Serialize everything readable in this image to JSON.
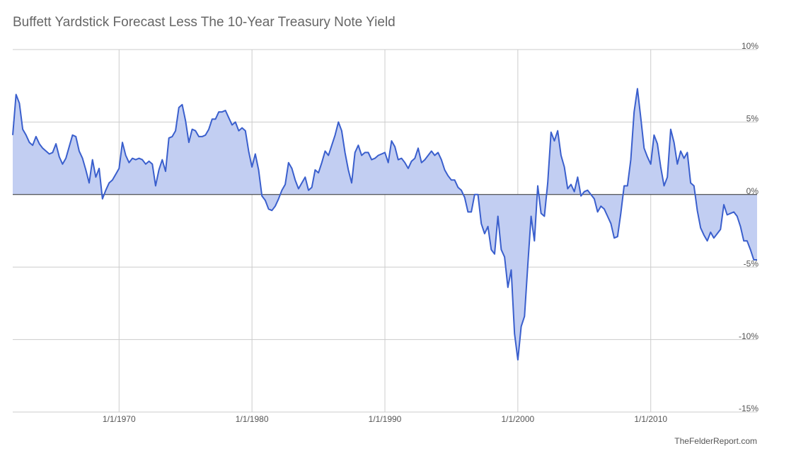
{
  "chart_data": {
    "type": "area",
    "title": "Buffett Yardstick Forecast Less The 10-Year Treasury Note Yield",
    "footnote": "TheFelderReport.com",
    "color": "#3a5fcd",
    "fill": "#c2cef2",
    "grid": true,
    "xlim": [
      1962,
      2018
    ],
    "ylim": [
      -15,
      10
    ],
    "xticks": [
      {
        "value": 1970,
        "label": "1/1/1970"
      },
      {
        "value": 1980,
        "label": "1/1/1980"
      },
      {
        "value": 1990,
        "label": "1/1/1990"
      },
      {
        "value": 2000,
        "label": "1/1/2000"
      },
      {
        "value": 2010,
        "label": "1/1/2010"
      }
    ],
    "yticks": [
      {
        "value": 10,
        "label": "10%"
      },
      {
        "value": 5,
        "label": "5%"
      },
      {
        "value": 0,
        "label": "0%"
      },
      {
        "value": -5,
        "label": "-5%"
      },
      {
        "value": -10,
        "label": "-10%"
      },
      {
        "value": -15,
        "label": "-15%"
      }
    ],
    "x": [
      1962,
      1962.25,
      1962.5,
      1962.75,
      1963,
      1963.25,
      1963.5,
      1963.75,
      1964,
      1964.25,
      1964.5,
      1964.75,
      1965,
      1965.25,
      1965.5,
      1965.75,
      1966,
      1966.25,
      1966.5,
      1966.75,
      1967,
      1967.25,
      1967.5,
      1967.75,
      1968,
      1968.25,
      1968.5,
      1968.75,
      1969,
      1969.25,
      1969.5,
      1969.75,
      1970,
      1970.25,
      1970.5,
      1970.75,
      1971,
      1971.25,
      1971.5,
      1971.75,
      1972,
      1972.25,
      1972.5,
      1972.75,
      1973,
      1973.25,
      1973.5,
      1973.75,
      1974,
      1974.25,
      1974.5,
      1974.75,
      1975,
      1975.25,
      1975.5,
      1975.75,
      1976,
      1976.25,
      1976.5,
      1976.75,
      1977,
      1977.25,
      1977.5,
      1977.75,
      1978,
      1978.25,
      1978.5,
      1978.75,
      1979,
      1979.25,
      1979.5,
      1979.75,
      1980,
      1980.25,
      1980.5,
      1980.75,
      1981,
      1981.25,
      1981.5,
      1981.75,
      1982,
      1982.25,
      1982.5,
      1982.75,
      1983,
      1983.25,
      1983.5,
      1983.75,
      1984,
      1984.25,
      1984.5,
      1984.75,
      1985,
      1985.25,
      1985.5,
      1985.75,
      1986,
      1986.25,
      1986.5,
      1986.75,
      1987,
      1987.25,
      1987.5,
      1987.75,
      1988,
      1988.25,
      1988.5,
      1988.75,
      1989,
      1989.25,
      1989.5,
      1989.75,
      1990,
      1990.25,
      1990.5,
      1990.75,
      1991,
      1991.25,
      1991.5,
      1991.75,
      1992,
      1992.25,
      1992.5,
      1992.75,
      1993,
      1993.25,
      1993.5,
      1993.75,
      1994,
      1994.25,
      1994.5,
      1994.75,
      1995,
      1995.25,
      1995.5,
      1995.75,
      1996,
      1996.25,
      1996.5,
      1996.75,
      1997,
      1997.25,
      1997.5,
      1997.75,
      1998,
      1998.25,
      1998.5,
      1998.75,
      1999,
      1999.25,
      1999.5,
      1999.75,
      2000,
      2000.25,
      2000.5,
      2000.75,
      2001,
      2001.25,
      2001.5,
      2001.75,
      2002,
      2002.25,
      2002.5,
      2002.75,
      2003,
      2003.25,
      2003.5,
      2003.75,
      2004,
      2004.25,
      2004.5,
      2004.75,
      2005,
      2005.25,
      2005.5,
      2005.75,
      2006,
      2006.25,
      2006.5,
      2006.75,
      2007,
      2007.25,
      2007.5,
      2007.75,
      2008,
      2008.25,
      2008.5,
      2008.75,
      2009,
      2009.25,
      2009.5,
      2009.75,
      2010,
      2010.25,
      2010.5,
      2010.75,
      2011,
      2011.25,
      2011.5,
      2011.75,
      2012,
      2012.25,
      2012.5,
      2012.75,
      2013,
      2013.25,
      2013.5,
      2013.75,
      2014,
      2014.25,
      2014.5,
      2014.75,
      2015,
      2015.25,
      2015.5,
      2015.75,
      2016,
      2016.25,
      2016.5,
      2016.75,
      2017,
      2017.25,
      2017.5,
      2017.75,
      2018
    ],
    "values": [
      4.1,
      6.9,
      6.3,
      4.5,
      4.1,
      3.6,
      3.4,
      4.0,
      3.5,
      3.2,
      3.0,
      2.8,
      2.9,
      3.5,
      2.6,
      2.1,
      2.5,
      3.3,
      4.1,
      4.0,
      3.0,
      2.5,
      1.7,
      0.8,
      2.4,
      1.2,
      1.8,
      -0.3,
      0.3,
      0.8,
      1.0,
      1.4,
      1.8,
      3.6,
      2.7,
      2.2,
      2.5,
      2.4,
      2.5,
      2.4,
      2.1,
      2.3,
      2.1,
      0.6,
      1.7,
      2.4,
      1.6,
      3.9,
      4.0,
      4.4,
      6.0,
      6.2,
      5.1,
      3.6,
      4.5,
      4.4,
      4.0,
      4.0,
      4.1,
      4.5,
      5.2,
      5.2,
      5.7,
      5.7,
      5.8,
      5.3,
      4.8,
      5.0,
      4.4,
      4.6,
      4.4,
      3.0,
      1.9,
      2.8,
      1.7,
      -0.1,
      -0.4,
      -1.0,
      -1.1,
      -0.8,
      -0.3,
      0.3,
      0.7,
      2.2,
      1.8,
      1.0,
      0.4,
      0.8,
      1.2,
      0.3,
      0.5,
      1.7,
      1.5,
      2.2,
      3.0,
      2.7,
      3.4,
      4.1,
      5.0,
      4.4,
      2.9,
      1.7,
      0.8,
      2.9,
      3.4,
      2.7,
      2.9,
      2.9,
      2.4,
      2.5,
      2.7,
      2.8,
      2.9,
      2.2,
      3.7,
      3.3,
      2.4,
      2.5,
      2.2,
      1.8,
      2.3,
      2.5,
      3.2,
      2.2,
      2.4,
      2.7,
      3.0,
      2.7,
      2.9,
      2.4,
      1.7,
      1.3,
      1.0,
      1.0,
      0.5,
      0.3,
      -0.2,
      -1.2,
      -1.2,
      0.0,
      0.0,
      -2.0,
      -2.7,
      -2.2,
      -3.8,
      -4.1,
      -1.5,
      -3.8,
      -4.3,
      -6.4,
      -5.2,
      -9.6,
      -11.4,
      -9.1,
      -8.4,
      -4.9,
      -1.5,
      -3.2,
      0.6,
      -1.3,
      -1.5,
      0.8,
      4.3,
      3.7,
      4.4,
      2.7,
      1.9,
      0.4,
      0.7,
      0.2,
      1.2,
      -0.1,
      0.2,
      0.3,
      0.0,
      -0.3,
      -1.2,
      -0.8,
      -1.0,
      -1.5,
      -2.0,
      -3.0,
      -2.9,
      -1.3,
      0.6,
      0.6,
      2.4,
      5.7,
      7.3,
      5.3,
      3.2,
      2.6,
      2.1,
      4.1,
      3.5,
      1.9,
      0.6,
      1.2,
      4.5,
      3.6,
      2.1,
      3.0,
      2.5,
      2.9,
      0.8,
      0.6,
      -1.1,
      -2.3,
      -2.8,
      -3.2,
      -2.6,
      -3.0,
      -2.7,
      -2.4,
      -0.7,
      -1.4,
      -1.3,
      -1.2,
      -1.5,
      -2.2,
      -3.2,
      -3.2,
      -3.8,
      -4.5,
      -4.5
    ]
  }
}
